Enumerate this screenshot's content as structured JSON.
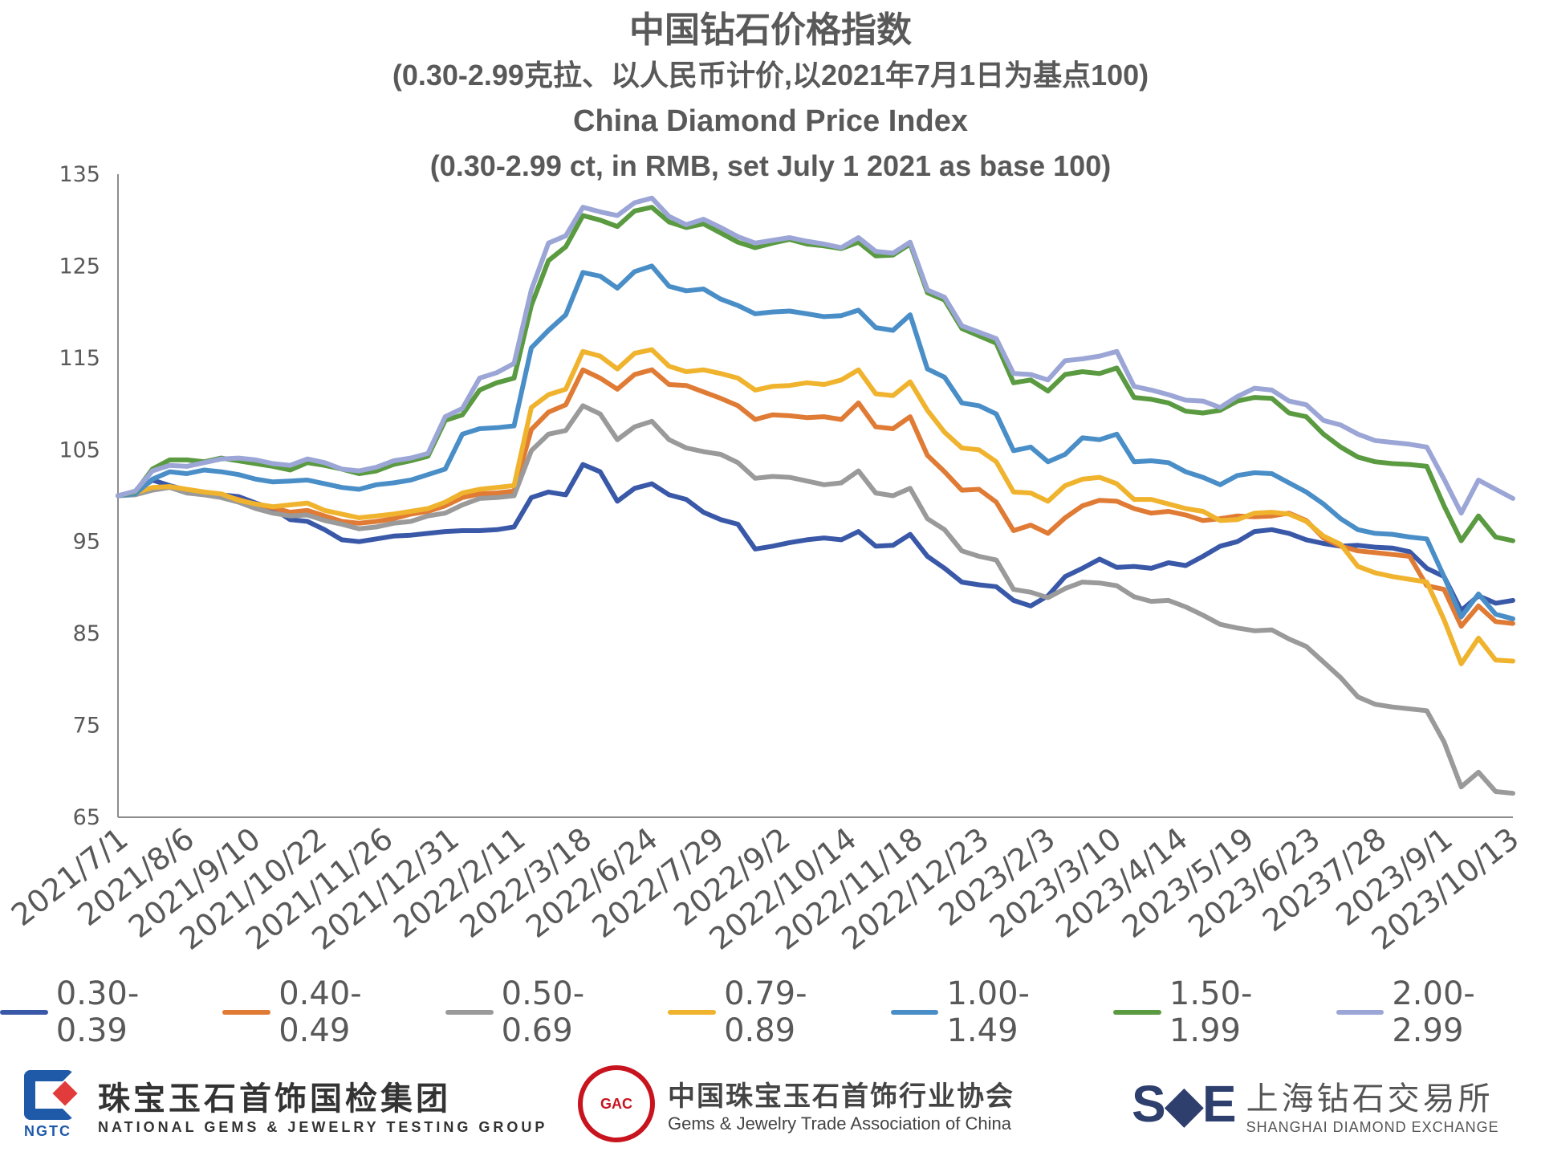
{
  "chart_data": {
    "type": "line",
    "title": "中国钻石价格指数",
    "subtitle_cn": "(0.30-2.99克拉、以人民币计价,以2021年7月1日为基点100)",
    "title_en": "China Diamond Price Index",
    "subtitle_en": "(0.30-2.99 ct, in RMB, set July 1 2021 as base 100)",
    "ylim": [
      65,
      135
    ],
    "yticks": [
      "135",
      "125",
      "115",
      "105",
      "95",
      "85",
      "75",
      "65"
    ],
    "xtick_labels": [
      "2021/7/1",
      "2021/8/6",
      "2021/9/10",
      "2021/10/22",
      "2021/11/26",
      "2021/12/31",
      "2022/2/11",
      "2022/3/18",
      "2022/6/24",
      "2022/7/29",
      "2022/9/2",
      "2022/10/14",
      "2022/11/18",
      "2022/12/23",
      "2023/2/3",
      "2023/3/10",
      "2023/4/14",
      "2023/5/19",
      "2023/6/23",
      "20237/28",
      "2023/9/1",
      "2023/10/13"
    ],
    "grid": false,
    "legend_position": "bottom",
    "series": [
      {
        "name": "0.30-0.39",
        "color": "#3a58a8",
        "values": [
          100,
          100.4,
          101.7,
          101.1,
          100.6,
          100.2,
          100.1,
          99.9,
          99.2,
          98.6,
          97.4,
          97.2,
          96.3,
          95.2,
          95.0,
          95.3,
          95.6,
          95.7,
          95.9,
          96.1,
          96.2,
          96.2,
          96.3,
          96.6,
          99.8,
          100.4,
          100.1,
          103.4,
          102.6,
          99.4,
          100.8,
          101.3,
          100.1,
          99.6,
          98.2,
          97.4,
          96.9,
          94.2,
          94.5,
          94.9,
          95.2,
          95.4,
          95.2,
          96.1,
          94.5,
          94.6,
          95.8,
          93.4,
          92.1,
          90.6,
          90.3,
          90.1,
          88.6,
          88.0,
          89.1,
          91.2,
          92.1,
          93.1,
          92.2,
          92.3,
          92.1,
          92.7,
          92.4,
          93.4,
          94.5,
          95.0,
          96.1,
          96.3,
          95.9,
          95.2,
          94.8,
          94.5,
          94.6,
          94.4,
          94.3,
          93.9,
          92.1,
          91.2,
          87.5,
          89.1,
          88.3,
          88.6
        ]
      },
      {
        "name": "0.40-0.49",
        "color": "#e07b35",
        "values": [
          100,
          100.2,
          100.7,
          101.0,
          100.5,
          100.2,
          100.0,
          99.6,
          99.0,
          98.7,
          98.2,
          98.4,
          97.8,
          97.2,
          97.0,
          97.2,
          97.5,
          98.0,
          98.3,
          98.9,
          99.8,
          100.2,
          100.3,
          100.5,
          107.2,
          109.1,
          109.9,
          113.7,
          112.8,
          111.6,
          113.2,
          113.7,
          112.1,
          112.0,
          111.3,
          110.6,
          109.8,
          108.3,
          108.8,
          108.7,
          108.5,
          108.6,
          108.3,
          110.1,
          107.5,
          107.3,
          108.6,
          104.4,
          102.6,
          100.6,
          100.7,
          99.3,
          96.2,
          96.8,
          95.9,
          97.6,
          98.9,
          99.5,
          99.4,
          98.6,
          98.1,
          98.3,
          97.9,
          97.3,
          97.5,
          97.8,
          97.7,
          97.8,
          98.1,
          97.3,
          95.4,
          94.5,
          94.0,
          93.8,
          93.6,
          93.4,
          90.2,
          89.8,
          85.8,
          88.0,
          86.3,
          86.1
        ]
      },
      {
        "name": "0.50-0.69",
        "color": "#9a9a9a",
        "values": [
          100,
          100.1,
          100.6,
          100.9,
          100.3,
          100.1,
          99.8,
          99.3,
          98.6,
          98.1,
          97.8,
          97.9,
          97.3,
          96.9,
          96.4,
          96.6,
          97.0,
          97.2,
          97.8,
          98.1,
          99.0,
          99.7,
          99.8,
          100.0,
          104.9,
          106.7,
          107.1,
          109.8,
          108.9,
          106.1,
          107.5,
          108.1,
          106.1,
          105.2,
          104.8,
          104.5,
          103.6,
          101.9,
          102.1,
          102.0,
          101.6,
          101.2,
          101.4,
          102.7,
          100.3,
          100.0,
          100.8,
          97.5,
          96.3,
          94.0,
          93.4,
          93.0,
          89.8,
          89.5,
          88.9,
          89.9,
          90.6,
          90.5,
          90.2,
          89.0,
          88.5,
          88.6,
          87.9,
          87.0,
          86.0,
          85.6,
          85.3,
          85.4,
          84.4,
          83.6,
          81.9,
          80.2,
          78.1,
          77.3,
          77.0,
          76.8,
          76.6,
          73.2,
          68.3,
          69.9,
          67.8,
          67.6
        ]
      },
      {
        "name": "0.79-0.89",
        "color": "#f0b32e",
        "values": [
          100,
          100.3,
          100.9,
          101.0,
          100.7,
          100.4,
          100.2,
          99.5,
          99.1,
          98.8,
          99.0,
          99.2,
          98.4,
          98.0,
          97.6,
          97.8,
          98.0,
          98.3,
          98.6,
          99.3,
          100.3,
          100.7,
          100.9,
          101.1,
          109.6,
          111.0,
          111.6,
          115.7,
          115.2,
          113.8,
          115.5,
          115.9,
          114.1,
          113.5,
          113.7,
          113.3,
          112.8,
          111.5,
          111.9,
          112.0,
          112.3,
          112.1,
          112.6,
          113.7,
          111.1,
          110.9,
          112.4,
          109.3,
          106.9,
          105.2,
          105.0,
          103.7,
          100.4,
          100.3,
          99.4,
          101.1,
          101.8,
          102.0,
          101.3,
          99.6,
          99.6,
          99.1,
          98.6,
          98.3,
          97.3,
          97.4,
          98.1,
          98.2,
          98.0,
          97.2,
          95.6,
          94.7,
          92.3,
          91.6,
          91.2,
          90.9,
          90.6,
          86.5,
          81.7,
          84.5,
          82.1,
          82.0
        ]
      },
      {
        "name": "1.00-1.49",
        "color": "#4a8ec8",
        "values": [
          100,
          100.2,
          101.8,
          102.6,
          102.4,
          102.8,
          102.6,
          102.3,
          101.8,
          101.5,
          101.6,
          101.7,
          101.3,
          100.9,
          100.7,
          101.2,
          101.4,
          101.7,
          102.3,
          102.9,
          106.7,
          107.3,
          107.4,
          107.6,
          116.1,
          118.0,
          119.7,
          124.3,
          123.9,
          122.6,
          124.4,
          125.0,
          122.8,
          122.3,
          122.5,
          121.4,
          120.7,
          119.8,
          120.0,
          120.1,
          119.8,
          119.5,
          119.6,
          120.2,
          118.3,
          118.0,
          119.7,
          113.8,
          112.9,
          110.1,
          109.8,
          108.9,
          104.9,
          105.3,
          103.7,
          104.5,
          106.3,
          106.1,
          106.7,
          103.7,
          103.8,
          103.6,
          102.6,
          102.0,
          101.2,
          102.2,
          102.5,
          102.4,
          101.4,
          100.4,
          99.1,
          97.5,
          96.3,
          95.9,
          95.8,
          95.5,
          95.3,
          91.2,
          86.8,
          89.3,
          87.1,
          86.6
        ]
      },
      {
        "name": "1.50-1.99",
        "color": "#5a9a40",
        "values": [
          100,
          100.4,
          102.9,
          103.9,
          103.9,
          103.7,
          104.1,
          103.8,
          103.5,
          103.2,
          102.8,
          103.6,
          103.3,
          102.9,
          102.4,
          102.7,
          103.4,
          103.8,
          104.3,
          108.2,
          108.8,
          111.5,
          112.3,
          112.8,
          120.7,
          125.6,
          127.1,
          130.5,
          130.0,
          129.3,
          131.0,
          131.4,
          129.8,
          129.2,
          129.6,
          128.6,
          127.6,
          127.0,
          127.5,
          127.9,
          127.4,
          127.2,
          126.9,
          127.6,
          126.1,
          126.2,
          127.4,
          122.1,
          121.3,
          118.2,
          117.4,
          116.6,
          112.3,
          112.6,
          111.4,
          113.2,
          113.5,
          113.3,
          113.9,
          110.7,
          110.5,
          110.1,
          109.2,
          109.0,
          109.3,
          110.3,
          110.7,
          110.6,
          109.0,
          108.6,
          106.7,
          105.3,
          104.2,
          103.7,
          103.5,
          103.4,
          103.2,
          98.9,
          95.1,
          97.8,
          95.5,
          95.1
        ]
      },
      {
        "name": "2.00-2.99",
        "color": "#9ba6d6",
        "values": [
          100,
          100.5,
          102.7,
          103.3,
          103.2,
          103.6,
          104.0,
          104.1,
          103.9,
          103.5,
          103.3,
          104.0,
          103.6,
          102.9,
          102.7,
          103.1,
          103.8,
          104.1,
          104.6,
          108.6,
          109.5,
          112.8,
          113.4,
          114.4,
          122.4,
          127.5,
          128.3,
          131.4,
          130.9,
          130.5,
          131.9,
          132.4,
          130.4,
          129.5,
          130.1,
          129.2,
          128.2,
          127.5,
          127.8,
          128.1,
          127.7,
          127.4,
          127.0,
          128.1,
          126.6,
          126.4,
          127.6,
          122.4,
          121.6,
          118.5,
          117.8,
          117.1,
          113.3,
          113.2,
          112.6,
          114.7,
          114.9,
          115.2,
          115.7,
          111.9,
          111.5,
          111.0,
          110.4,
          110.3,
          109.6,
          110.8,
          111.7,
          111.5,
          110.3,
          109.9,
          108.2,
          107.7,
          106.7,
          106.0,
          105.8,
          105.6,
          105.3,
          101.8,
          98.1,
          101.7,
          100.7,
          99.7
        ]
      }
    ]
  },
  "logos": {
    "ngtc_mark_text": "NGTC",
    "ngtc_cn": "珠宝玉石首饰国检集团",
    "ngtc_en": "NATIONAL GEMS & JEWELRY TESTING GROUP",
    "gac_mark_text": "GAC",
    "gac_cn": "中国珠宝玉石首饰行业协会",
    "gac_en": "Gems & Jewelry Trade Association of China",
    "sde_mark_text": "S◆E",
    "sde_cn": "上海钻石交易所",
    "sde_en": "SHANGHAI DIAMOND EXCHANGE"
  }
}
